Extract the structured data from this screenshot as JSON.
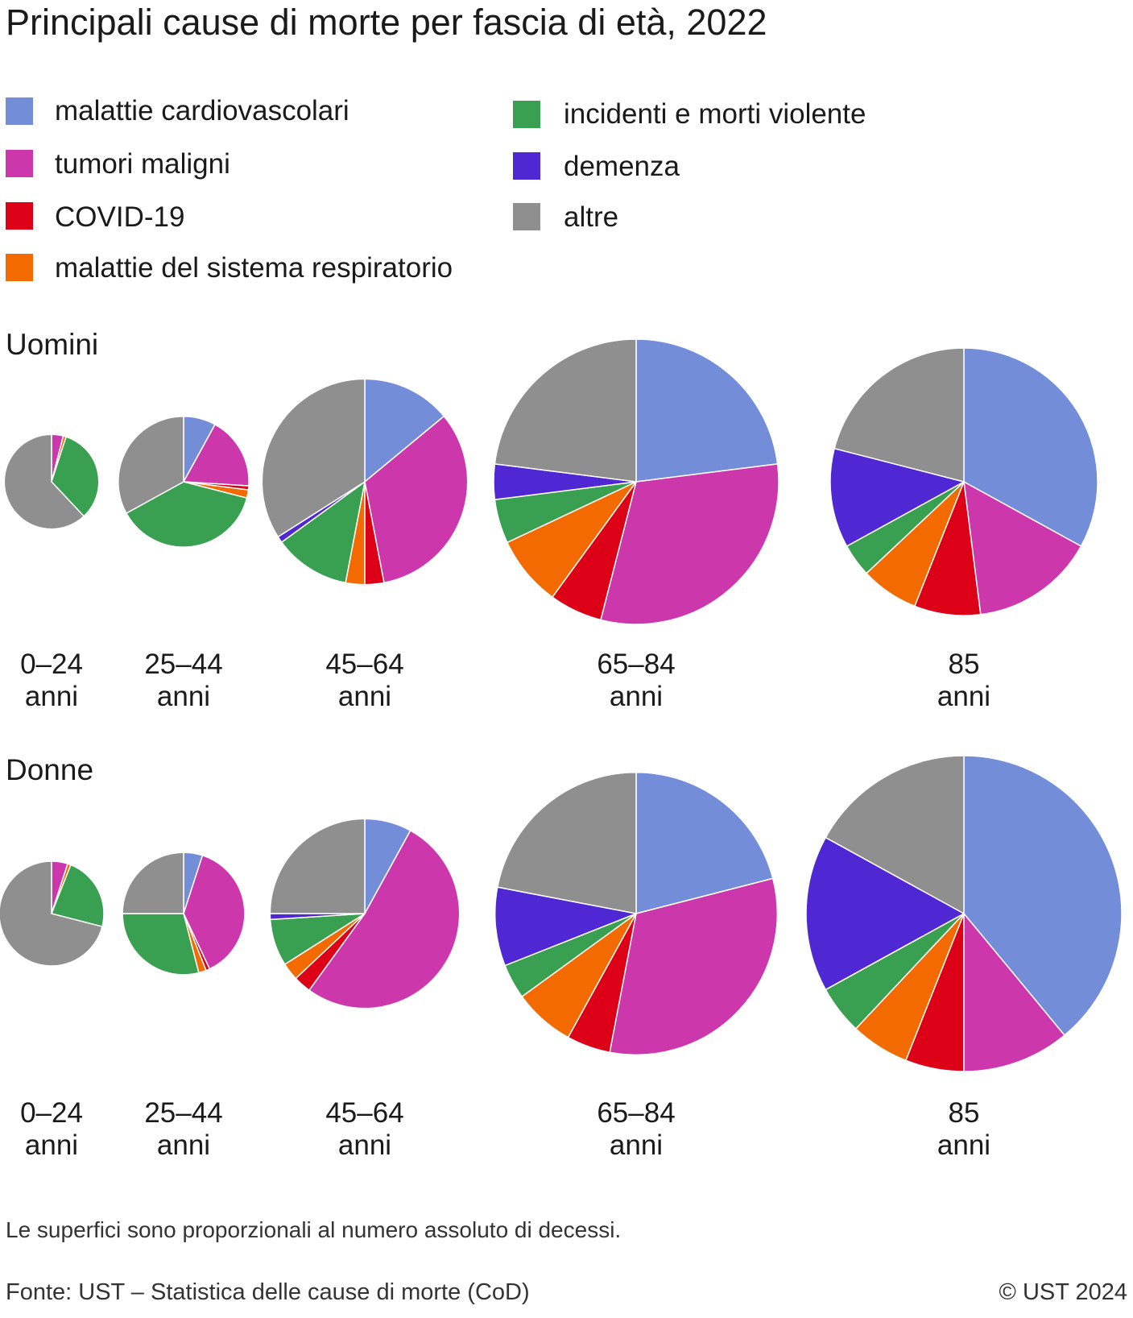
{
  "title": "Principali cause di morte per fascia di età, 2022",
  "legend": [
    {
      "key": "cardio",
      "label": "malattie cardiovascolari",
      "color": "#738dd8"
    },
    {
      "key": "tumori",
      "label": "tumori maligni",
      "color": "#cc37ac"
    },
    {
      "key": "covid",
      "label": "COVID-19",
      "color": "#dd0118"
    },
    {
      "key": "resp",
      "label": "malattie del sistema respiratorio",
      "color": "#f36b00"
    },
    {
      "key": "incidenti",
      "label": "incidenti e morti violente",
      "color": "#38a050"
    },
    {
      "key": "demenza",
      "label": "demenza",
      "color": "#4f27d3"
    },
    {
      "key": "altre",
      "label": "altre",
      "color": "#8f8f8f"
    }
  ],
  "sections": {
    "men": "Uomini",
    "women": "Donne"
  },
  "age_groups": [
    {
      "line1": "0–24",
      "line2": "anni"
    },
    {
      "line1": "25–44",
      "line2": "anni"
    },
    {
      "line1": "45–64",
      "line2": "anni"
    },
    {
      "line1": "65–84",
      "line2": "anni"
    },
    {
      "line1": "85",
      "line2": "anni"
    }
  ],
  "note": "Le superfici sono proporzionali al numero assoluto di decessi.",
  "source": "Fonte: UST – Statistica delle cause di morte (CoD)",
  "copyright": "© UST 2024",
  "chart_data": {
    "type": "pie",
    "title": "Principali cause di morte per fascia di età, 2022",
    "categories": [
      "malattie cardiovascolari",
      "tumori maligni",
      "COVID-19",
      "malattie del sistema respiratorio",
      "incidenti e morti violente",
      "demenza",
      "altre"
    ],
    "area_proportional_to_total": true,
    "groups": [
      {
        "name": "Uomini",
        "pies": [
          {
            "age": "0–24 anni",
            "size": 0.11,
            "shares": [
              0,
              4,
              0,
              1,
              33,
              0,
              62
            ]
          },
          {
            "age": "25–44 anni",
            "size": 0.21,
            "shares": [
              8,
              18,
              1,
              2,
              38,
              0,
              33
            ]
          },
          {
            "age": "45–64 anni",
            "size": 0.52,
            "shares": [
              14,
              33,
              3,
              3,
              12,
              1,
              34
            ]
          },
          {
            "age": "65–84 anni",
            "size": 1.0,
            "shares": [
              23,
              31,
              6,
              8,
              5,
              4,
              23
            ]
          },
          {
            "age": "85 anni",
            "size": 0.88,
            "shares": [
              33,
              15,
              8,
              7,
              4,
              12,
              21
            ]
          }
        ]
      },
      {
        "name": "Donne",
        "pies": [
          {
            "age": "0–24 anni",
            "size": 0.11,
            "shares": [
              0,
              5,
              0,
              1,
              23,
              0,
              71
            ]
          },
          {
            "age": "25–44 anni",
            "size": 0.15,
            "shares": [
              5,
              38,
              1,
              2,
              29,
              0,
              25
            ]
          },
          {
            "age": "45–64 anni",
            "size": 0.36,
            "shares": [
              8,
              52,
              3,
              3,
              8,
              1,
              25
            ]
          },
          {
            "age": "65–84 anni",
            "size": 0.8,
            "shares": [
              21,
              32,
              5,
              7,
              4,
              9,
              22
            ]
          },
          {
            "age": "85 anni",
            "size": 1.0,
            "shares": [
              39,
              11,
              6,
              6,
              5,
              16,
              17
            ]
          }
        ]
      }
    ]
  }
}
